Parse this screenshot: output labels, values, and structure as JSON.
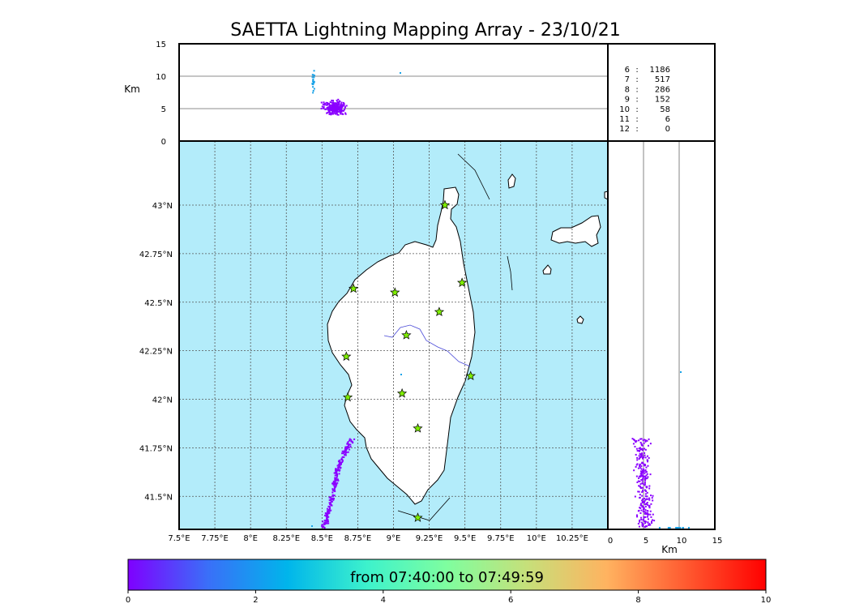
{
  "title": "SAETTA Lightning Mapping Array - 23/10/21",
  "colors": {
    "sea": "#b3ecfa",
    "land": "#ffffff",
    "grid": "#555555",
    "river": "#4b4bd8",
    "star_fill": "#7fef00",
    "highlight_row": "#cc0000",
    "early_sources": "#1aa3e8",
    "late_sources": "#8a00ff"
  },
  "map": {
    "lon_range": [
      7.5,
      10.5
    ],
    "lat_range": [
      41.33,
      43.33
    ],
    "lon_ticks": [
      "7.5°E",
      "7.75°E",
      "8°E",
      "8.25°E",
      "8.5°E",
      "8.75°E",
      "9°E",
      "9.25°E",
      "9.5°E",
      "9.75°E",
      "10°E",
      "10.25°E"
    ],
    "lat_ticks": [
      "41.5°N",
      "41.75°N",
      "42°N",
      "42.25°N",
      "42.5°N",
      "42.75°N",
      "43°N"
    ],
    "stations": [
      {
        "lon": 9.36,
        "lat": 43.0
      },
      {
        "lon": 9.48,
        "lat": 42.6
      },
      {
        "lon": 8.72,
        "lat": 42.57
      },
      {
        "lon": 9.01,
        "lat": 42.55
      },
      {
        "lon": 9.32,
        "lat": 42.45
      },
      {
        "lon": 9.09,
        "lat": 42.33
      },
      {
        "lon": 8.67,
        "lat": 42.22
      },
      {
        "lon": 9.54,
        "lat": 42.12
      },
      {
        "lon": 9.06,
        "lat": 42.03
      },
      {
        "lon": 8.68,
        "lat": 42.01
      },
      {
        "lon": 9.17,
        "lat": 41.85
      },
      {
        "lon": 9.17,
        "lat": 41.39
      }
    ]
  },
  "altitude_panel": {
    "ylabel": "Km",
    "y_ticks": [
      "0",
      "5",
      "10",
      "15"
    ],
    "range": [
      0,
      15
    ]
  },
  "side_panel": {
    "xlabel": "Km",
    "x_ticks": [
      "0",
      "5",
      "10",
      "15"
    ],
    "range": [
      0,
      15
    ]
  },
  "station_counts": [
    {
      "stations": "6",
      "sep": ":",
      "sources": "1186",
      "highlight": false
    },
    {
      "stations": "7",
      "sep": ":",
      "sources": "517",
      "highlight": true
    },
    {
      "stations": "8",
      "sep": ":",
      "sources": "286",
      "highlight": false
    },
    {
      "stations": "9",
      "sep": ":",
      "sources": "152",
      "highlight": false
    },
    {
      "stations": "10",
      "sep": ":",
      "sources": "58",
      "highlight": false
    },
    {
      "stations": "11",
      "sep": ":",
      "sources": "6",
      "highlight": false
    },
    {
      "stations": "12",
      "sep": ":",
      "sources": "0",
      "highlight": false
    }
  ],
  "colorbar": {
    "label": "from 07:40:00 to 07:49:59",
    "ticks": [
      "0",
      "2",
      "4",
      "6",
      "8",
      "10"
    ],
    "range": [
      0,
      10
    ],
    "stops": [
      "#7f00ff",
      "#3a6ff8",
      "#00b5eb",
      "#3df2cc",
      "#7ffe9f",
      "#c6e07a",
      "#ffb360",
      "#ff5a30",
      "#ff0000"
    ]
  }
}
